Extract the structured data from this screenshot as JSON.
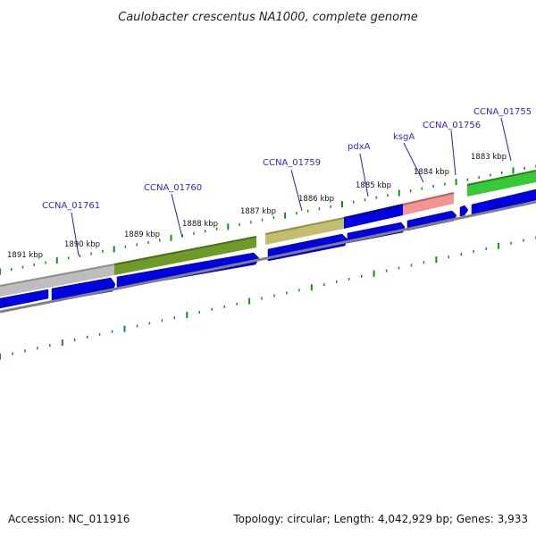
{
  "title": "Caulobacter crescentus NA1000, complete genome",
  "footer": {
    "accession": "Accession: NC_011916",
    "summary": "Topology: circular; Length: 4,042,929 bp; Genes: 3,933"
  },
  "colors": {
    "gene_blue": "#0000e0",
    "backbone": "#808080",
    "tick_green": "#1a8a1a",
    "label_blue": "#2b2bc8",
    "label_line": "#2020b0"
  },
  "kbp_labels": [
    "1891 kbp",
    "1890 kbp",
    "1889 kbp",
    "1888 kbp",
    "1887 kbp",
    "1886 kbp",
    "1885 kbp",
    "1884 kbp",
    "1883 kbp"
  ],
  "gene_labels": [
    "CCNA_01761",
    "CCNA_01760",
    "CCNA_01759",
    "pdxA",
    "ksgA",
    "CCNA_01756",
    "CCNA_01755"
  ],
  "features": [
    {
      "name": "grey-feature",
      "color": "#bdbdbd",
      "edge": "#8c8c8c"
    },
    {
      "name": "olive-dark-feature",
      "color": "#6e9a28",
      "edge": "#4c6e18"
    },
    {
      "name": "khaki-feature",
      "color": "#c3bd70",
      "edge": "#94904c"
    },
    {
      "name": "blue-feature",
      "color": "#0000e0",
      "edge": "#00008a"
    },
    {
      "name": "pink-feature",
      "color": "#f09494",
      "edge": "#b86060"
    },
    {
      "name": "green-feature",
      "color": "#38c838",
      "edge": "#1e8a1e"
    }
  ]
}
